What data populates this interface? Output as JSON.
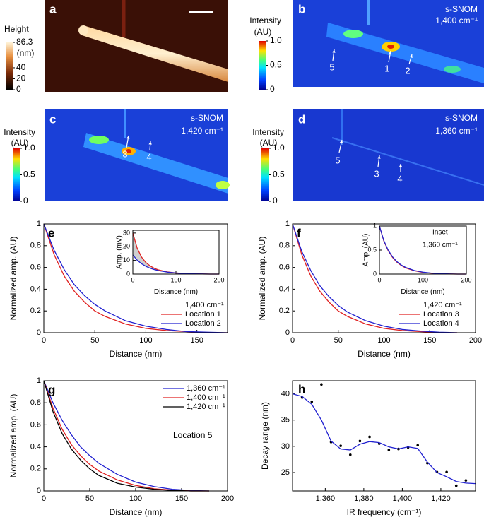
{
  "image_panels": [
    {
      "panel": "a",
      "colorbar_title": "Height",
      "colorbar_unit": "(nm)",
      "colorbar_lim": [
        0,
        86.3
      ],
      "colorbar_ticks": [
        86.3,
        40,
        20,
        0
      ],
      "annotations": []
    },
    {
      "panel": "b",
      "title": "s-SNOM",
      "subtitle": "1,400 cm⁻¹",
      "colorbar_title": "Intensity",
      "colorbar_unit": "(AU)",
      "colorbar_lim": [
        0,
        1
      ],
      "colorbar_ticks": [
        {
          "value": 1,
          "label": "1.0"
        },
        0.5,
        0
      ],
      "annotations": [
        "5",
        "1",
        "2"
      ]
    },
    {
      "panel": "c",
      "title": "s-SNOM",
      "subtitle": "1,420 cm⁻¹",
      "colorbar_title": "Intensity",
      "colorbar_unit": "(AU)",
      "colorbar_lim": [
        0,
        1
      ],
      "colorbar_ticks": [
        {
          "value": 1,
          "label": "1.0"
        },
        0.5,
        0
      ],
      "annotations": [
        "3",
        "4"
      ]
    },
    {
      "panel": "d",
      "title": "s-SNOM",
      "subtitle": "1,360 cm⁻¹",
      "colorbar_title": "Intensity",
      "colorbar_unit": "(AU)",
      "colorbar_lim": [
        0,
        1
      ],
      "colorbar_ticks": [
        {
          "value": 1,
          "label": "1.0"
        },
        0.5,
        0
      ],
      "annotations": [
        "5",
        "3",
        "4"
      ]
    }
  ],
  "chart_data": [
    {
      "type": "line",
      "panel": "e",
      "xlabel": "Distance (nm)",
      "ylabel": "Normalized amp. (AU)",
      "legend_title": "1,400 cm⁻¹",
      "x": [
        0,
        10,
        20,
        30,
        40,
        50,
        60,
        80,
        100,
        120,
        140,
        160,
        180
      ],
      "xlim": [
        0,
        180
      ],
      "xticks": [
        0,
        50,
        100,
        150
      ],
      "ylim": [
        0,
        1
      ],
      "yticks": [
        0,
        0.2,
        0.4,
        0.6,
        0.8,
        1
      ],
      "series": [
        {
          "name": "Location 1",
          "color": "#e02020",
          "values": [
            1,
            0.72,
            0.52,
            0.38,
            0.28,
            0.2,
            0.15,
            0.08,
            0.04,
            0.02,
            0.01,
            0,
            0
          ]
        },
        {
          "name": "Location 2",
          "color": "#2020d0",
          "values": [
            1,
            0.76,
            0.58,
            0.44,
            0.34,
            0.26,
            0.2,
            0.11,
            0.06,
            0.03,
            0.01,
            0.005,
            0
          ]
        }
      ]
    },
    {
      "type": "line",
      "xlabel": "Distance (nm)",
      "ylabel": "Amp. (mV)",
      "fill_between": true,
      "x": [
        0,
        10,
        20,
        30,
        40,
        50,
        60,
        80,
        100,
        120,
        140,
        160,
        180,
        200
      ],
      "xlim": [
        0,
        200
      ],
      "xticks": [
        0,
        100,
        200
      ],
      "ylim": [
        0,
        32
      ],
      "yticks": [
        0,
        10,
        20,
        30
      ],
      "series": [
        {
          "color": "#e02020",
          "values": [
            30,
            19,
            12.5,
            8.5,
            6,
            4.2,
            3,
            1.6,
            0.8,
            0.4,
            0.2,
            0.1,
            0,
            0
          ]
        },
        {
          "color": "#2020d0",
          "values": [
            14,
            10.2,
            7.6,
            5.7,
            4.3,
            3.3,
            2.5,
            1.4,
            0.8,
            0.4,
            0.2,
            0.1,
            0,
            0
          ]
        }
      ]
    },
    {
      "type": "line",
      "panel": "f",
      "xlabel": "Distance (nm)",
      "ylabel": "Normalized amp. (AU)",
      "legend_title": "1,420 cm⁻¹",
      "x": [
        0,
        10,
        20,
        30,
        40,
        50,
        60,
        80,
        100,
        120,
        140,
        160,
        180
      ],
      "xlim": [
        0,
        200
      ],
      "xticks": [
        0,
        50,
        100,
        150,
        200
      ],
      "ylim": [
        0,
        1
      ],
      "yticks": [
        0,
        0.2,
        0.4,
        0.6,
        0.8,
        1
      ],
      "series": [
        {
          "name": "Location 3",
          "color": "#e02020",
          "values": [
            1,
            0.72,
            0.52,
            0.38,
            0.28,
            0.2,
            0.15,
            0.08,
            0.04,
            0.02,
            0.01,
            0,
            0
          ]
        },
        {
          "name": "Location 4",
          "color": "#2020d0",
          "values": [
            1,
            0.75,
            0.57,
            0.43,
            0.33,
            0.25,
            0.19,
            0.11,
            0.06,
            0.03,
            0.015,
            0.005,
            0
          ]
        }
      ]
    },
    {
      "type": "line",
      "xlabel": "Distance (nm)",
      "ylabel": "Amp. (AU)",
      "annotations": [
        "Inset",
        "1,360 cm⁻¹"
      ],
      "x": [
        0,
        10,
        20,
        30,
        40,
        50,
        60,
        80,
        100,
        120,
        140,
        160,
        180,
        200
      ],
      "xlim": [
        0,
        200
      ],
      "xticks": [
        0,
        100,
        200
      ],
      "ylim": [
        0,
        1
      ],
      "yticks": [
        0,
        0.5,
        1
      ],
      "series": [
        {
          "color": "#e02020",
          "values": [
            1,
            0.69,
            0.49,
            0.35,
            0.25,
            0.18,
            0.13,
            0.07,
            0.035,
            0.018,
            0.008,
            0.003,
            0,
            0
          ]
        },
        {
          "color": "#2020d0",
          "values": [
            1,
            0.7,
            0.5,
            0.36,
            0.26,
            0.19,
            0.14,
            0.075,
            0.04,
            0.02,
            0.01,
            0.004,
            0,
            0
          ]
        }
      ]
    },
    {
      "type": "line",
      "panel": "g",
      "xlabel": "Distance (nm)",
      "ylabel": "Normalized amp. (AU)",
      "annotations": [
        "Location 5"
      ],
      "x": [
        0,
        10,
        20,
        30,
        40,
        50,
        60,
        80,
        100,
        120,
        140,
        160,
        180
      ],
      "xlim": [
        0,
        200
      ],
      "xticks": [
        0,
        50,
        100,
        150,
        200
      ],
      "ylim": [
        0,
        1
      ],
      "yticks": [
        0,
        0.2,
        0.4,
        0.6,
        0.8,
        1
      ],
      "series": [
        {
          "name": "1,360 cm⁻¹",
          "color": "#2020d0",
          "values": [
            1,
            0.8,
            0.64,
            0.51,
            0.4,
            0.32,
            0.25,
            0.15,
            0.08,
            0.04,
            0.015,
            0.005,
            0
          ]
        },
        {
          "name": "1,400 cm⁻¹",
          "color": "#e02020",
          "values": [
            1,
            0.75,
            0.56,
            0.42,
            0.32,
            0.24,
            0.18,
            0.1,
            0.05,
            0.02,
            0.008,
            0,
            0
          ]
        },
        {
          "name": "1,420 cm⁻¹",
          "color": "#000000",
          "values": [
            1,
            0.72,
            0.52,
            0.38,
            0.28,
            0.2,
            0.14,
            0.07,
            0.035,
            0.015,
            0.005,
            0,
            0
          ]
        }
      ]
    },
    {
      "type": "scatter",
      "panel": "h",
      "xlabel": "IR frequency (cm⁻¹)",
      "ylabel": "Decay range (nm)",
      "xlim": [
        1343,
        1438
      ],
      "xticks": [
        {
          "value": 1360,
          "label": "1,360"
        },
        {
          "value": 1380,
          "label": "1,380"
        },
        {
          "value": 1400,
          "label": "1,400"
        },
        {
          "value": 1420,
          "label": "1,420"
        }
      ],
      "ylim": [
        21.5,
        42.5
      ],
      "yticks": [
        25,
        30,
        35,
        40
      ],
      "series": [
        {
          "mode": "markers",
          "color": "#000000",
          "x": [
            1348,
            1353,
            1358,
            1363,
            1368,
            1373,
            1378,
            1383,
            1388,
            1393,
            1398,
            1403,
            1408,
            1413,
            1418,
            1423,
            1428,
            1433
          ],
          "values": [
            39.3,
            38.5,
            41.8,
            30.8,
            30.1,
            28.4,
            31,
            31.8,
            30.5,
            29.3,
            29.5,
            29.8,
            30.2,
            26.8,
            25.1,
            25.1,
            22.5,
            23.5
          ]
        },
        {
          "mode": "line",
          "color": "#2020d0",
          "x": [
            1343,
            1348,
            1353,
            1358,
            1363,
            1368,
            1373,
            1378,
            1383,
            1388,
            1393,
            1398,
            1403,
            1408,
            1413,
            1418,
            1423,
            1428,
            1433,
            1438
          ],
          "values": [
            40,
            39.5,
            38,
            35,
            31,
            29.5,
            29.3,
            30.4,
            30.9,
            30.7,
            29.9,
            29.5,
            29.9,
            29.6,
            27,
            25,
            24.2,
            23.3,
            23,
            22.9
          ]
        }
      ]
    }
  ]
}
